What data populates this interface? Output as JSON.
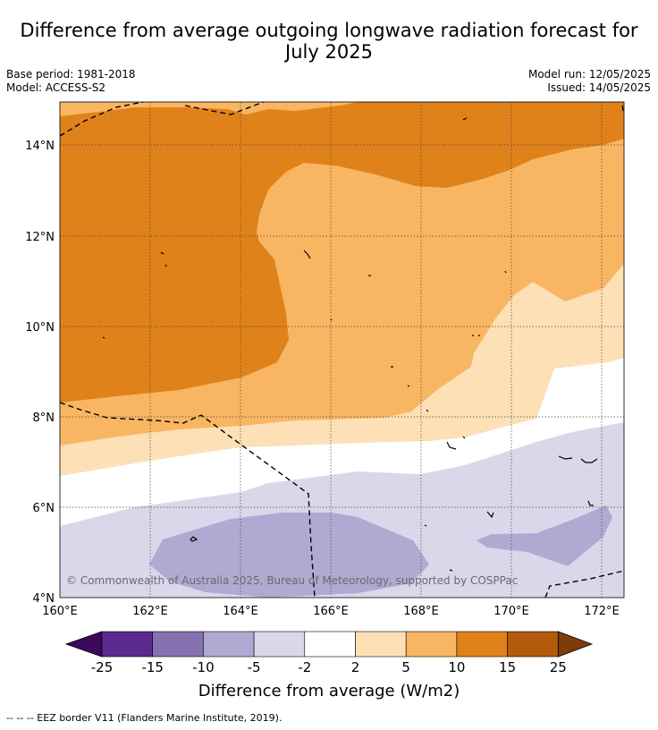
{
  "header": {
    "title_line1": "Difference from average outgoing longwave radiation forecast for",
    "title_line2": "July 2025",
    "base_period": "Base period: 1981-2018",
    "model": "Model: ACCESS-S2",
    "model_run": "Model run: 12/05/2025",
    "issued": "Issued: 14/05/2025"
  },
  "map": {
    "lat_labels": [
      "14°N",
      "12°N",
      "10°N",
      "8°N",
      "6°N",
      "4°N"
    ],
    "lon_labels": [
      "160°E",
      "162°E",
      "164°E",
      "166°E",
      "168°E",
      "170°E",
      "172°E"
    ],
    "copyright": "© Commonwealth of Australia 2025, Bureau of Meteorology, supported by COSPPac"
  },
  "colorbar": {
    "title": "Difference from average (W/m2)",
    "tick_labels": [
      "-25",
      "-15",
      "-10",
      "-5",
      "-2",
      "2",
      "5",
      "10",
      "15",
      "25"
    ],
    "colors": [
      "#3b0a5c",
      "#5c2a8f",
      "#8472b0",
      "#b0aad2",
      "#d8d8ea",
      "#ffffff",
      "#fde0b6",
      "#f9b662",
      "#e0821a",
      "#b45a0c",
      "#7f3b08"
    ]
  },
  "footnote": "--  --  -- EEZ border V11 (Flanders Marine Institute, 2019)."
}
